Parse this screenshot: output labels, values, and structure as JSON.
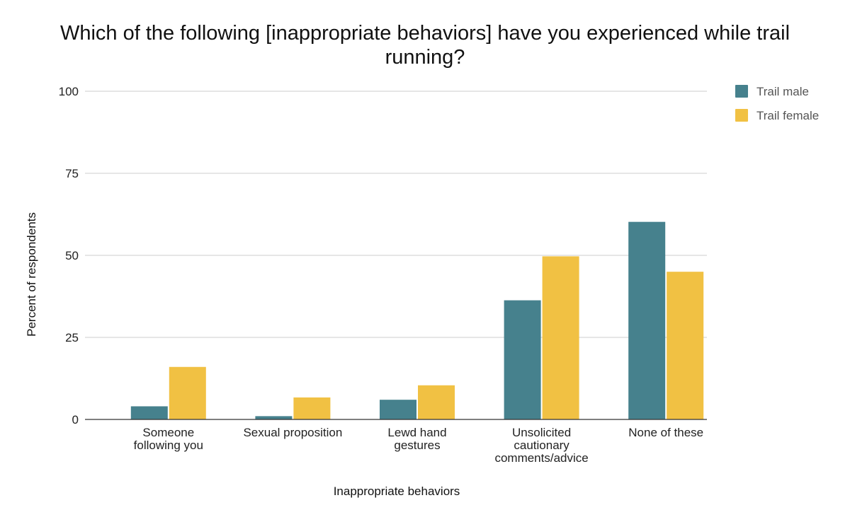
{
  "chart_data": {
    "type": "bar",
    "title_lines": [
      "Which of the following [inappropriate behaviors] have you experienced while trail",
      "running?"
    ],
    "xlabel": "Inappropriate behaviors",
    "ylabel": "Percent of respondents",
    "ylim": [
      0,
      100
    ],
    "yticks": [
      "0",
      "25",
      "50",
      "75",
      "100"
    ],
    "grid": true,
    "legend_position": "right",
    "categories": [
      [
        "Someone",
        "following you"
      ],
      [
        "Sexual proposition"
      ],
      [
        "Lewd hand",
        "gestures"
      ],
      [
        "Unsolicited",
        "cautionary",
        "comments/advice"
      ],
      [
        "None of these"
      ]
    ],
    "series": [
      {
        "name": "Trail male",
        "color": "#46818d",
        "values": [
          4,
          1,
          6,
          36.3,
          60.2
        ]
      },
      {
        "name": "Trail female",
        "color": "#f1c143",
        "values": [
          16,
          6.7,
          10.4,
          49.7,
          45
        ]
      }
    ]
  }
}
